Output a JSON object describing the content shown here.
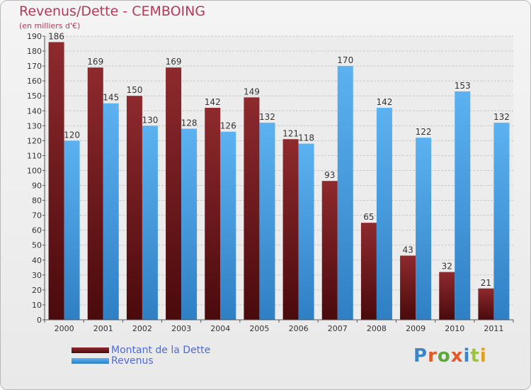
{
  "header": {
    "title": "Revenus/Dette - CEMBOING",
    "subtitle": "(en milliers d'€)"
  },
  "legend": {
    "debt_label": "Montant de la Dette",
    "revenue_label": "Revenus"
  },
  "logo": {
    "text": "Proxiti",
    "letter_colors": [
      "#3a86c8",
      "#e05a2a",
      "#5aa83a",
      "#e05a2a",
      "#3a86c8",
      "#9bc43a",
      "#e0a020"
    ]
  },
  "colors": {
    "debt": "#7a1f22",
    "revenue": "#4aa3e8"
  },
  "chart_data": {
    "type": "bar",
    "title": "Revenus/Dette - CEMBOING",
    "ylabel": "(en milliers d'€)",
    "categories": [
      "2000",
      "2001",
      "2002",
      "2003",
      "2004",
      "2005",
      "2006",
      "2007",
      "2008",
      "2009",
      "2010",
      "2011"
    ],
    "series": [
      {
        "name": "Montant de la Dette",
        "values": [
          186,
          169,
          150,
          169,
          142,
          149,
          121,
          93,
          65,
          43,
          32,
          21
        ]
      },
      {
        "name": "Revenus",
        "values": [
          120,
          145,
          130,
          128,
          126,
          132,
          118,
          170,
          142,
          122,
          153,
          132
        ]
      }
    ],
    "ylim": [
      0,
      190
    ],
    "yticks": [
      0,
      10,
      20,
      30,
      40,
      50,
      60,
      70,
      80,
      90,
      100,
      110,
      120,
      130,
      140,
      150,
      160,
      170,
      180,
      190
    ],
    "grid": true,
    "legend_position": "bottom-left"
  }
}
